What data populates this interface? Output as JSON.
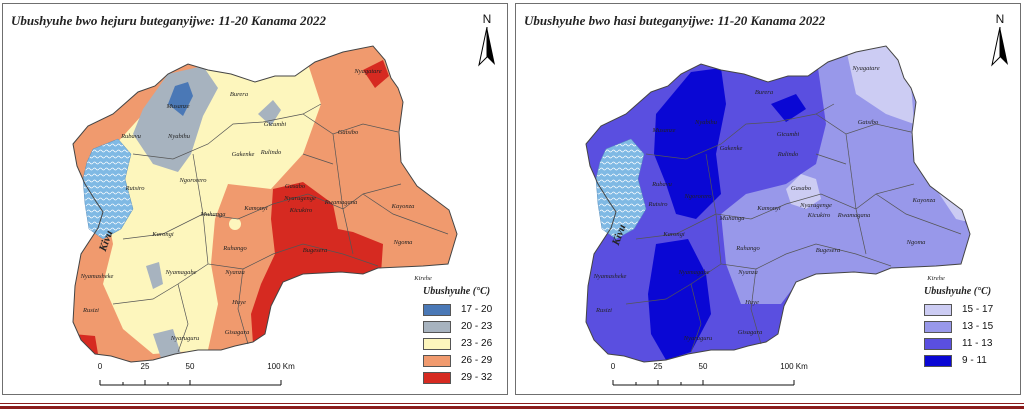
{
  "maps": [
    {
      "title": "Ubushyuhe bwo hejuru buteganyijwe: 11-20 Kanama 2022",
      "north_label": "N",
      "legend_title": "Ubushyuhe (°C)",
      "legend": [
        {
          "label": "17 - 20",
          "color": "#4a78b6"
        },
        {
          "label": "20 - 23",
          "color": "#a7b3bf"
        },
        {
          "label": "23 - 26",
          "color": "#fdf6bd"
        },
        {
          "label": "26 - 29",
          "color": "#f09a6e"
        },
        {
          "label": "29 - 32",
          "color": "#d62a21"
        }
      ],
      "scale": {
        "ticks": [
          "0",
          "25",
          "50",
          "100 Km"
        ]
      },
      "place_labels": [
        "Musanze",
        "Burera",
        "Rubavu",
        "Nyabihu",
        "Gicumbi",
        "Nyagatare",
        "Gatsibo",
        "Gakenke",
        "Rulindo",
        "Rutsiro",
        "Ngororero",
        "Gasabo",
        "Muhanga",
        "Kamonyi",
        "Nyarugenge",
        "Kicukiro",
        "Rwamagana",
        "Kayonza",
        "Karongi",
        "Ruhango",
        "Bugesera",
        "Ngoma",
        "Kirehe",
        "Nyanza",
        "Nyamasheke",
        "Nyamagabe",
        "Huye",
        "Rusizi",
        "Gisagara",
        "Nyaruguru",
        "Kivu"
      ]
    },
    {
      "title": "Ubushyuhe bwo hasi buteganyijwe: 11-20 Kanama 2022",
      "north_label": "N",
      "legend_title": "Ubushyuhe (°C)",
      "legend": [
        {
          "label": "15 - 17",
          "color": "#ccccf3"
        },
        {
          "label": "13 - 15",
          "color": "#9898ea"
        },
        {
          "label": "11 - 13",
          "color": "#5a4fe0"
        },
        {
          "label": "9 - 11",
          "color": "#0a07d4"
        }
      ],
      "scale": {
        "ticks": [
          "0",
          "25",
          "50",
          "100 Km"
        ]
      },
      "place_labels": [
        "Nyagatare",
        "Burera",
        "Musanze",
        "Nyabihu",
        "Gicumbi",
        "Gakenke",
        "Gatsibo",
        "Rubavu",
        "Rulindo",
        "Gasabo",
        "Rutsiro",
        "Ngororero",
        "Nyarugenge",
        "Kicukiro",
        "Kayonza",
        "Muhanga",
        "Kamonyi",
        "Rwamagana",
        "Karongi",
        "Ruhango",
        "Bugesera",
        "Ngoma",
        "Kirehe",
        "Nyanza",
        "Nyamasheke",
        "Nyamagabe",
        "Huye",
        "Rusizi",
        "Gisagara",
        "Nyaruguru",
        "Kivu"
      ]
    }
  ],
  "colors": {
    "lake": "#7fb9e4",
    "border": "#444444",
    "district_line": "#555555",
    "bottom_rule": "#8b1c1c"
  }
}
